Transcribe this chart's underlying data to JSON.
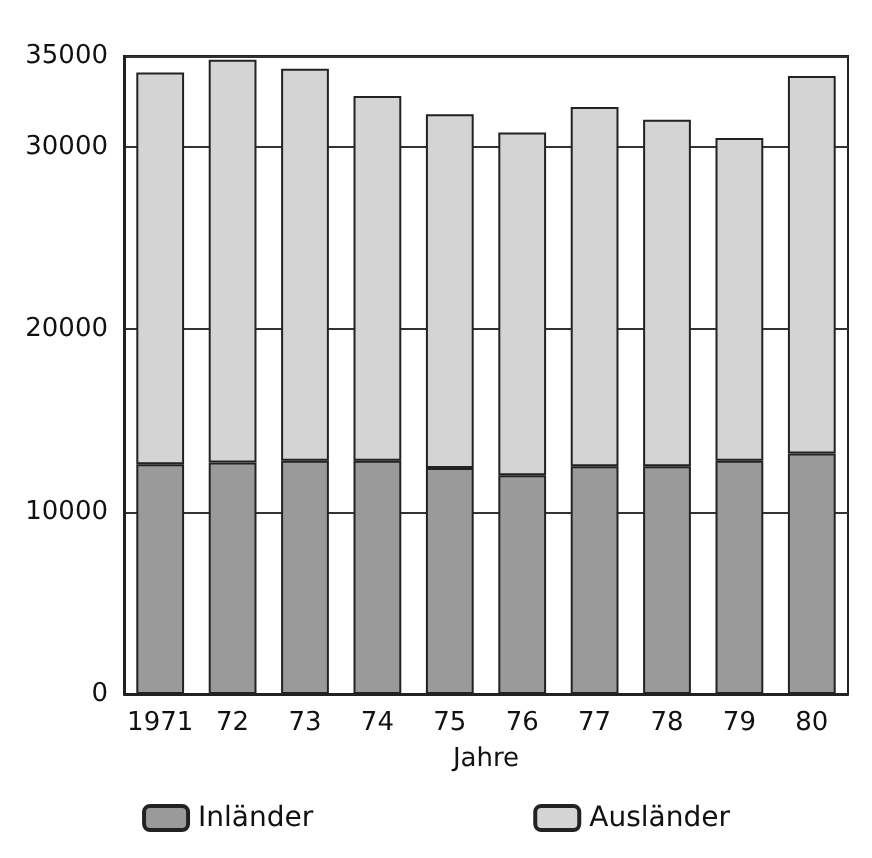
{
  "chart_data": {
    "type": "bar",
    "stacked": true,
    "xlabel": "Jahre",
    "categories": [
      "1971",
      "72",
      "73",
      "74",
      "75",
      "76",
      "77",
      "78",
      "79",
      "80"
    ],
    "series": [
      {
        "name": "Inländer",
        "color": "#9a9a9a",
        "values": [
          12600,
          12700,
          12800,
          12800,
          12400,
          12000,
          12500,
          12500,
          12800,
          13200
        ]
      },
      {
        "name": "Ausländer",
        "color": "#d4d4d4",
        "values": [
          21500,
          22100,
          21500,
          20000,
          19400,
          18800,
          19700,
          19000,
          17700,
          20700
        ]
      }
    ],
    "ylim": [
      0,
      35000
    ],
    "yticks": [
      0,
      10000,
      20000,
      30000,
      35000
    ],
    "grid": "y",
    "legend": "bottom"
  }
}
